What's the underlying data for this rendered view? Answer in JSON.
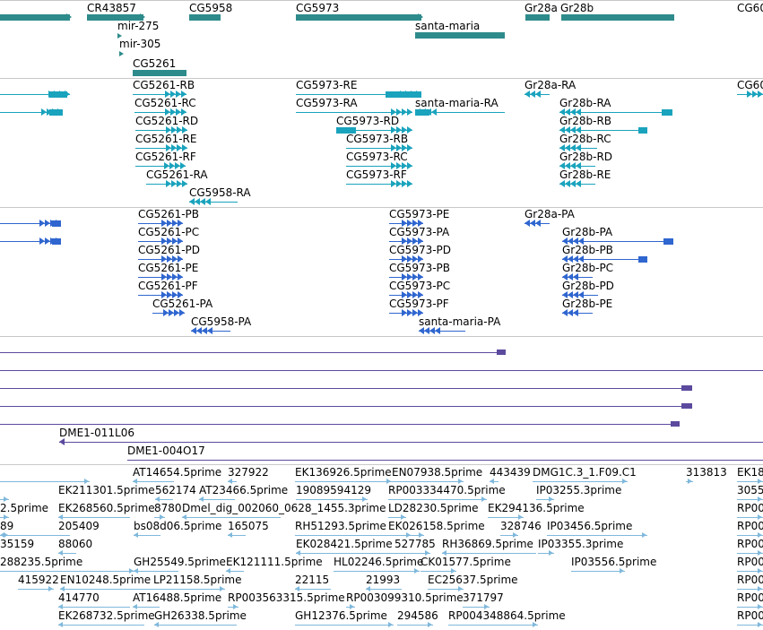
{
  "colors": {
    "gene": "#2e8b8b",
    "transcript": "#1aa3bd",
    "protein": "#2f66cf",
    "purple": "#5c4a9e",
    "est": "#7fb8dc",
    "separator": "#c8c8c8"
  },
  "genes": [
    "CR43857",
    "CG5958",
    "CG5973",
    "Gr28a",
    "Gr28b",
    "CG60",
    "mir-275",
    "mir-305",
    "santa-maria",
    "CG5261"
  ],
  "transcripts": [
    "CG5261-RB",
    "CG5261-RC",
    "CG5261-RD",
    "CG5261-RE",
    "CG5261-RF",
    "CG5261-RA",
    "CG5958-RA",
    "CG5973-RE",
    "CG5973-RA",
    "CG5973-RD",
    "CG5973-RB",
    "CG5973-RC",
    "CG5973-RF",
    "santa-maria-RA",
    "Gr28a-RA",
    "Gr28b-RA",
    "Gr28b-RB",
    "Gr28b-RC",
    "Gr28b-RD",
    "Gr28b-RE",
    "CG60"
  ],
  "proteins": [
    "CG5261-PB",
    "CG5261-PC",
    "CG5261-PD",
    "CG5261-PE",
    "CG5261-PF",
    "CG5261-PA",
    "CG5958-PA",
    "CG5973-PE",
    "CG5973-PA",
    "CG5973-PD",
    "CG5973-PB",
    "CG5973-PC",
    "CG5973-PF",
    "santa-maria-PA",
    "Gr28a-PA",
    "Gr28b-PA",
    "Gr28b-PB",
    "Gr28b-PC",
    "Gr28b-PD",
    "Gr28b-PE"
  ],
  "clones": [
    "DME1-011L06",
    "DME1-004O17"
  ],
  "ests": [
    "AT14654.5prime",
    "327922",
    "EK136926.5prime",
    "EN07938.5prime",
    "443439",
    "DMG1C.3_1.F09.C1",
    "313813",
    "EK18",
    "EK211301.5prime",
    "562174",
    "AT23466.5prime",
    "19089594129",
    "RP003334470.5prime",
    "IP03255.3prime",
    "3055",
    "2.5prime",
    "EK268560.5prime",
    "8780",
    "Dmel_dig_002060_0628_1455.3prime",
    "LD28230.5prime",
    "EK294136.5prime",
    "RP00",
    "89",
    "205409",
    "bs08d06.5prime",
    "165075",
    "RH51293.5prime",
    "EK026158.5prime",
    "328746",
    "IP03456.5prime",
    "RP00",
    "35159",
    "88060",
    "EK028421.5prime",
    "527785",
    "RH36869.5prime",
    "IP03355.3prime",
    "RP00",
    "288235.5prime",
    "GH25549.5prime",
    "EK121111.5prime",
    "HL02246.5prime",
    "CK01577.5prime",
    "IP03556.5prime",
    "RP00",
    "415922",
    "EN10248.5prime",
    "LP21158.5prime",
    "22115",
    "21993",
    "EC25637.5prime",
    "RP00",
    "414770",
    "AT16488.5prime",
    "RP003563315.5prime",
    "RP003099310.5prime",
    "371797",
    "RP00",
    "EK268732.5prime",
    "GH26338.5prime",
    "GH12376.5prime",
    "294586",
    "RP004348864.5prime",
    "RP00"
  ]
}
